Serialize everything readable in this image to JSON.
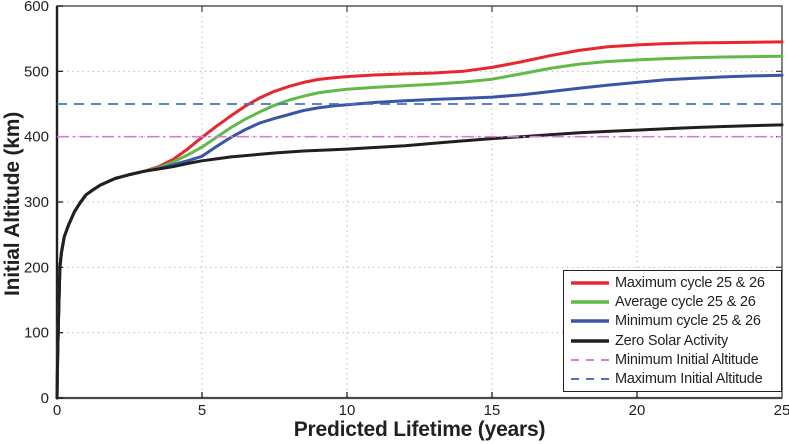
{
  "chart_data": {
    "type": "line",
    "title": "",
    "xlabel": "Predicted Lifetime (years)",
    "ylabel": "Initial Altitude (km)",
    "xlim": [
      0,
      25
    ],
    "ylim": [
      0,
      600
    ],
    "xticks": [
      0,
      5,
      10,
      15,
      20,
      25
    ],
    "yticks": [
      0,
      100,
      200,
      300,
      400,
      500,
      600
    ],
    "grid": "dotted",
    "grid_color": "#b3b3b3",
    "axis_color": "#4a4a4a",
    "text_color": "#231f20",
    "legend_position": "lower right",
    "x": [
      0,
      0.02,
      0.05,
      0.1,
      0.15,
      0.25,
      0.4,
      0.6,
      0.8,
      1,
      1.25,
      1.5,
      2,
      2.5,
      3,
      3.5,
      4,
      4.5,
      5,
      5.5,
      6,
      6.5,
      7,
      7.5,
      8,
      8.5,
      9,
      9.5,
      10,
      11,
      12,
      13,
      14,
      15,
      16,
      17,
      18,
      19,
      20,
      21,
      22,
      23,
      24,
      25
    ],
    "series": [
      {
        "name": "Maximum cycle 25 & 26",
        "color": "#e8262d",
        "style": "solid",
        "values": [
          0,
          60,
          120,
          200,
          222,
          247,
          265,
          285,
          299,
          311,
          319,
          326,
          336,
          342,
          347,
          354,
          365,
          381,
          399,
          416,
          432,
          447,
          459.5,
          469.5,
          477,
          483,
          487.5,
          490,
          492,
          494.5,
          496,
          497.5,
          500,
          506,
          514.5,
          524,
          532,
          537.5,
          540.5,
          542.5,
          543.5,
          544,
          544.5,
          545
        ]
      },
      {
        "name": "Average cycle 25 & 26",
        "color": "#5fba46",
        "style": "solid",
        "values": [
          0,
          60,
          120,
          200,
          222,
          247,
          265,
          285,
          299,
          311,
          319,
          326,
          336,
          342,
          347,
          352.5,
          361,
          372,
          384,
          399,
          414,
          427,
          438,
          448,
          456,
          462,
          467,
          470,
          472.5,
          475.5,
          478,
          480.5,
          483.5,
          488,
          496,
          504.5,
          511,
          515,
          517.5,
          519.5,
          521,
          522,
          522.5,
          523
        ]
      },
      {
        "name": "Minimum cycle 25 & 26",
        "color": "#3a55a5",
        "style": "solid",
        "values": [
          0,
          60,
          120,
          200,
          222,
          247,
          265,
          285,
          299,
          311,
          319,
          326,
          336,
          342,
          347,
          351,
          357,
          363,
          370,
          385,
          399,
          411,
          421,
          428,
          434,
          440,
          444,
          447,
          449,
          452.5,
          455,
          457,
          458.5,
          460.5,
          464,
          469,
          474,
          479,
          483,
          487,
          489.5,
          491.5,
          493,
          494
        ]
      },
      {
        "name": "Zero Solar Activity",
        "color": "#231f20",
        "style": "solid",
        "values": [
          0,
          60,
          120,
          200,
          222,
          247,
          265,
          285,
          299,
          311,
          319,
          326,
          336,
          342,
          347,
          350.5,
          354,
          359,
          363,
          366,
          369,
          371,
          373,
          375,
          376.5,
          378,
          379,
          380,
          381,
          383.5,
          386,
          390,
          393.5,
          397,
          400,
          403,
          406,
          408,
          410,
          412,
          414,
          415.5,
          417,
          418
        ]
      },
      {
        "name": "Minimum Initial Altitude",
        "color": "#d57ecd",
        "style": "dashdot",
        "constant": 400
      },
      {
        "name": "Maximum Initial Altitude",
        "color": "#4a71c2",
        "style": "dashed",
        "constant": 450
      }
    ]
  }
}
